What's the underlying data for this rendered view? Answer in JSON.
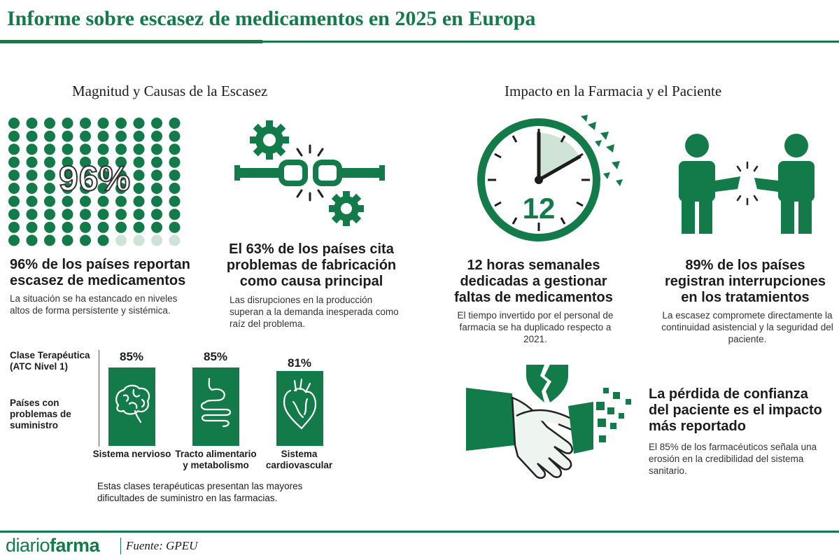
{
  "header": {
    "title": "Informe sobre escasez de medicamentos en 2025 en Europa"
  },
  "colors": {
    "accent": "#137a4a",
    "light": "#cfe3d7"
  },
  "left": {
    "heading": "Magnitud y Causas de la Escasez",
    "dots": {
      "percent": 96,
      "total": 100
    },
    "pct_overlay": "96%",
    "stat1": {
      "headline": "96% de los países reportan escasez de medicamentos",
      "text": "La situación se ha estancado en niveles altos de forma persistente y sistémica."
    },
    "stat2": {
      "headline": "El 63% de los países cita problemas de fabricación como causa principal",
      "text": "Las disrupciones en la producción superan a la demanda inesperada como raíz del problema."
    },
    "classes": {
      "label_class": "Clase Terapéutica (ATC Nivel 1)",
      "label_countries": "Países con problemas de suministro",
      "items": [
        {
          "name": "Sistema nervioso",
          "value": 85,
          "display": "85%",
          "icon": "brain-icon"
        },
        {
          "name": "Tracto alimentario y metabolismo",
          "value": 85,
          "display": "85%",
          "icon": "stomach-icon"
        },
        {
          "name": "Sistema cardiovascular",
          "value": 81,
          "display": "81%",
          "icon": "heart-icon"
        }
      ],
      "note": "Estas clases terapéuticas presentan las mayores dificultades de suministro en las farmacias."
    }
  },
  "right": {
    "heading": "Impacto en la Farmacia y el Paciente",
    "clock_number": "12",
    "stat3": {
      "headline": "12 horas semanales dedicadas a gestionar faltas de medicamentos",
      "text": "El tiempo invertido por el personal de farmacia se ha duplicado respecto a 2021."
    },
    "stat4": {
      "headline": "89% de los países registran interrupciones en los tratamientos",
      "text": "La escasez compromete directamente la continuidad asistencial y la seguridad del paciente."
    },
    "stat5": {
      "headline": "La pérdida de confianza del paciente es el impacto más reportado",
      "text": "El 85% de los farmacéuticos señala una erosión en la credibilidad del sistema sanitario."
    }
  },
  "footer": {
    "logo_light": "diario",
    "logo_bold": "farma",
    "source": "Fuente: GPEU"
  }
}
